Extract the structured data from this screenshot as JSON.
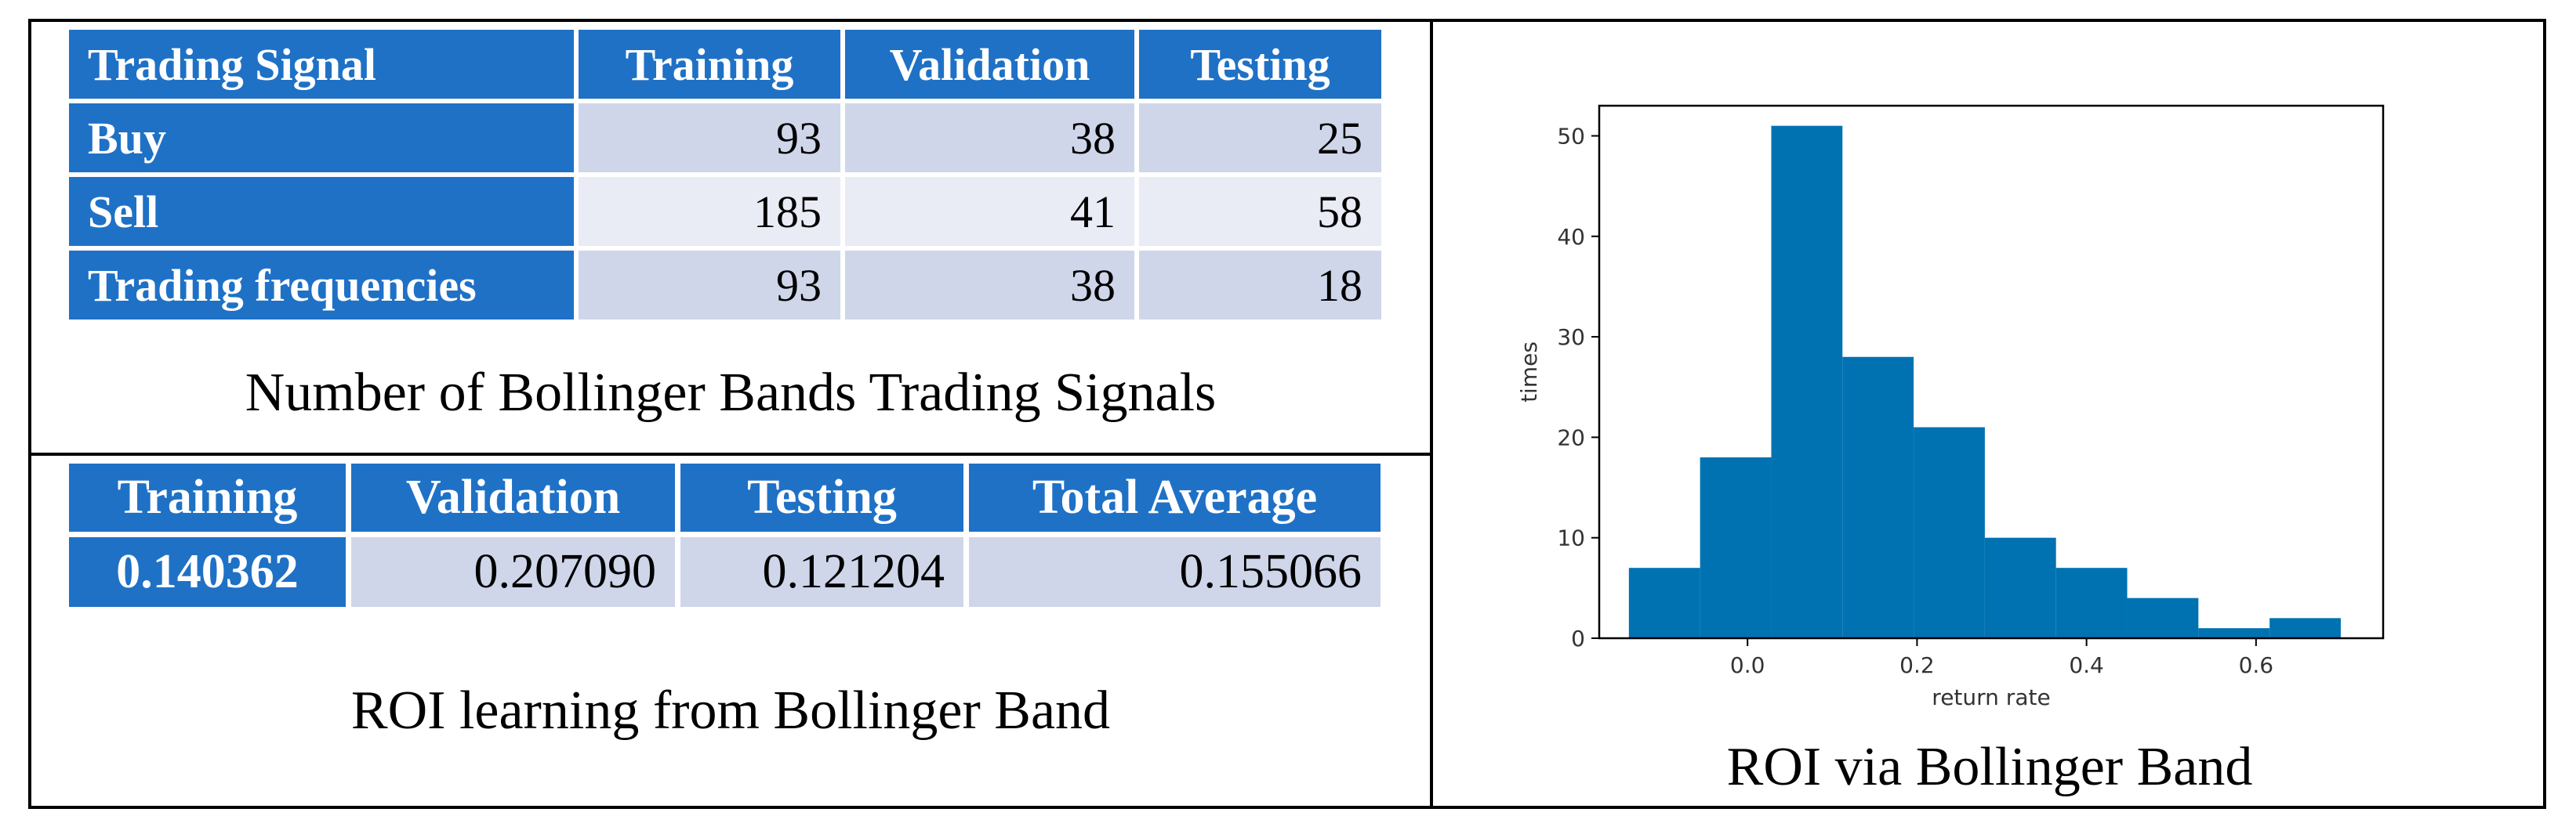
{
  "signals_table": {
    "headers": [
      "Trading Signal",
      "Training",
      "Validation",
      "Testing"
    ],
    "rows": [
      {
        "label": "Buy",
        "values": [
          "93",
          "38",
          "25"
        ]
      },
      {
        "label": "Sell",
        "values": [
          "185",
          "41",
          "58"
        ]
      },
      {
        "label": "Trading frequencies",
        "values": [
          "93",
          "38",
          "18"
        ]
      }
    ],
    "caption": "Number of Bollinger Bands Trading Signals"
  },
  "roi_table": {
    "headers": [
      "Training",
      "Validation",
      "Testing",
      "Total Average"
    ],
    "values": [
      "0.140362",
      "0.207090",
      "0.121204",
      "0.155066"
    ],
    "caption": "ROI learning from Bollinger Band"
  },
  "histogram_caption": "ROI via Bollinger Band",
  "chart_data": {
    "type": "bar",
    "title": "",
    "xlabel": "return rate",
    "ylabel": "times",
    "bin_edges": [
      -0.14,
      -0.056,
      0.028,
      0.112,
      0.196,
      0.28,
      0.364,
      0.448,
      0.532,
      0.616,
      0.7
    ],
    "values": [
      7,
      18,
      51,
      28,
      21,
      10,
      7,
      4,
      1,
      2
    ],
    "xlim": [
      -0.175,
      0.75
    ],
    "ylim": [
      0,
      53
    ],
    "xticks": [
      0.0,
      0.2,
      0.4,
      0.6
    ],
    "xtick_labels": [
      "0.0",
      "0.2",
      "0.4",
      "0.6"
    ],
    "yticks": [
      0,
      10,
      20,
      30,
      40,
      50
    ],
    "ytick_labels": [
      "0",
      "10",
      "20",
      "30",
      "40",
      "50"
    ],
    "bar_color": "#0072b2",
    "grid": false
  }
}
